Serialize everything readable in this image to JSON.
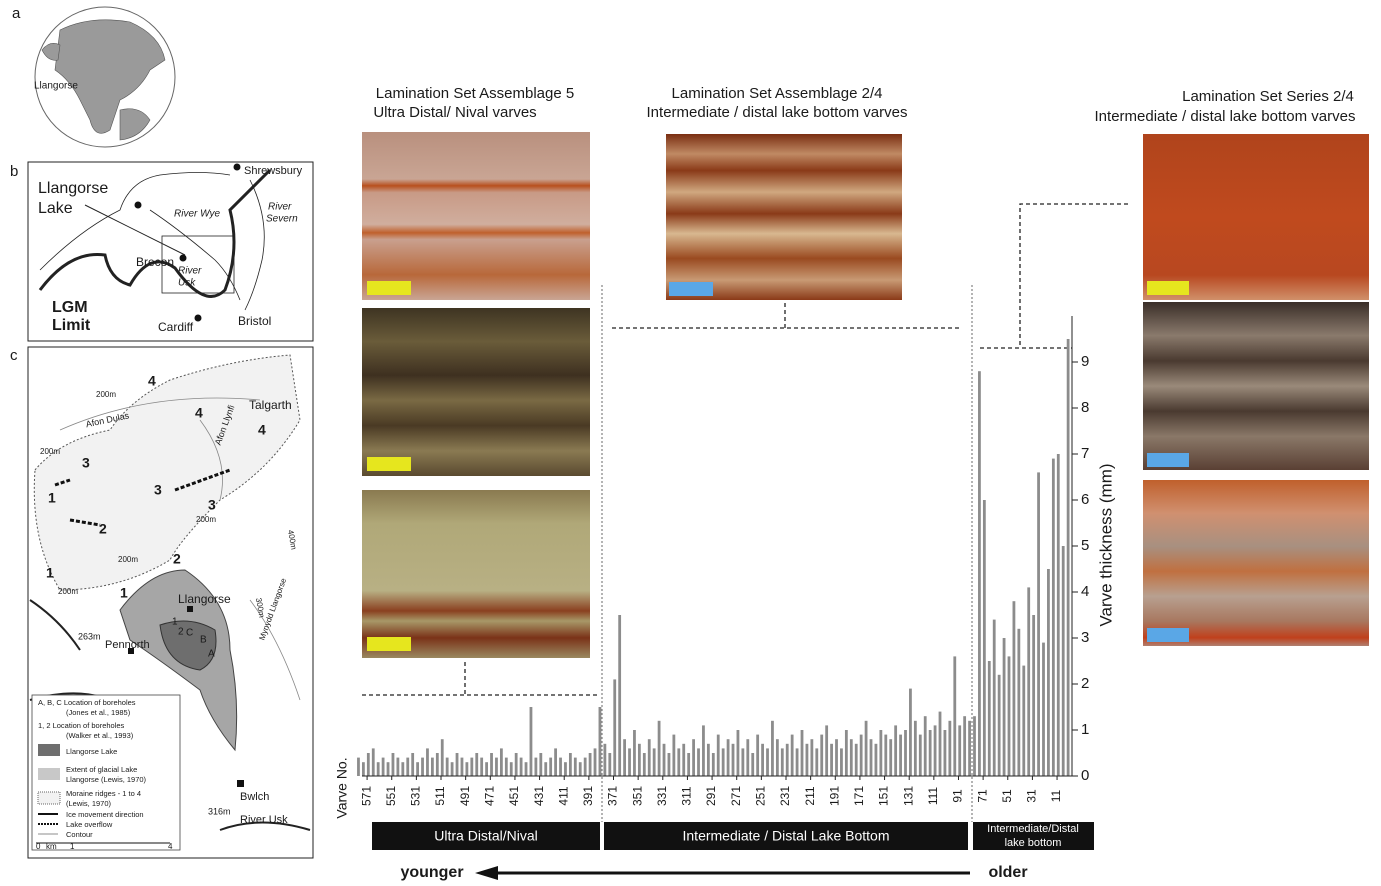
{
  "figure": {
    "panel_a": "a",
    "panel_b": "b",
    "panel_c": "c",
    "globe_label": "Llangorse",
    "map_b": {
      "lake_1": "Llangorse",
      "lake_2": "Lake",
      "shrewsbury": "Shrewsbury",
      "wye": "River Wye",
      "severn_1": "River",
      "severn_2": "Severn",
      "brecon": "Brecon",
      "usk_1": "River",
      "usk_2": "Usk",
      "lgm_1": "LGM",
      "lgm_2": "Limit",
      "cardiff": "Cardiff",
      "bristol": "Bristol"
    },
    "map_c": {
      "talgarth": "Talgarth",
      "dulas": "Afon Dulas",
      "llynfi": "Afon Llynfi",
      "llangorse": "Llangorse",
      "pennorth": "Pennorth",
      "bwlch": "Bwlch",
      "usk": "River Usk",
      "h263": "263m",
      "h316": "316m",
      "m1": "1",
      "m2": "2",
      "m3": "3",
      "m4": "4",
      "c200": "200m",
      "c300": "300m",
      "c400": "400m",
      "mynydd": "Mynydd Llangorse",
      "bA": "A",
      "bB": "B",
      "bC": "C",
      "b1": "1",
      "b2": "2",
      "legend": [
        "A, B, C  Location of boreholes",
        "(Jones et al., 1985)",
        "1, 2  Location of boreholes",
        "(Walker et al., 1993)",
        "Llangorse Lake",
        "Extent of glacial Lake",
        "Llangorse (Lewis, 1970)",
        "Moraine ridges - 1 to 4",
        "(Lewis, 1970)",
        "Ice movement direction",
        "Lake overflow",
        "Contour"
      ],
      "scale_0": "0",
      "scale_km": "km",
      "scale_1": "1",
      "scale_4": "4"
    },
    "heading_1": [
      "Lamination Set Assemblage 5",
      "Ultra Distal/ Nival varves"
    ],
    "heading_2": [
      "Lamination Set Assemblage 2/4",
      "Intermediate / distal lake bottom varves"
    ],
    "heading_3": [
      "Lamination Set Series 2/4",
      "Intermediate / distal lake bottom varves"
    ],
    "zones": [
      "Ultra Distal/Nival",
      "Intermediate / Distal Lake Bottom",
      "Intermediate/Distal",
      "lake bottom"
    ],
    "younger": "younger",
    "older": "older"
  },
  "chart_data": {
    "type": "bar",
    "xlabel": "Varve No.",
    "ylabel": "Varve thickness (mm)",
    "color": "#8c8c8c",
    "xlim": [
      580,
      0
    ],
    "ylim": [
      0,
      10
    ],
    "xticks": [
      571,
      551,
      531,
      511,
      491,
      471,
      451,
      431,
      411,
      391,
      371,
      351,
      331,
      311,
      291,
      271,
      251,
      231,
      211,
      191,
      171,
      151,
      131,
      111,
      91,
      71,
      51,
      31,
      11
    ],
    "yticks": [
      0,
      1,
      2,
      3,
      4,
      5,
      6,
      7,
      8,
      9
    ],
    "x": [
      578,
      574,
      570,
      566,
      562,
      558,
      554,
      550,
      546,
      542,
      538,
      534,
      530,
      526,
      522,
      518,
      514,
      510,
      506,
      502,
      498,
      494,
      490,
      486,
      482,
      478,
      474,
      470,
      466,
      462,
      458,
      454,
      450,
      446,
      442,
      438,
      434,
      430,
      426,
      422,
      418,
      414,
      410,
      406,
      402,
      398,
      394,
      390,
      386,
      382,
      378,
      374,
      370,
      366,
      362,
      358,
      354,
      350,
      346,
      342,
      338,
      334,
      330,
      326,
      322,
      318,
      314,
      310,
      306,
      302,
      298,
      294,
      290,
      286,
      282,
      278,
      274,
      270,
      266,
      262,
      258,
      254,
      250,
      246,
      242,
      238,
      234,
      230,
      226,
      222,
      218,
      214,
      210,
      206,
      202,
      198,
      194,
      190,
      186,
      182,
      178,
      174,
      170,
      166,
      162,
      158,
      154,
      150,
      146,
      142,
      138,
      134,
      130,
      126,
      122,
      118,
      114,
      110,
      106,
      102,
      98,
      94,
      90,
      86,
      82,
      78,
      74,
      70,
      66,
      62,
      58,
      54,
      50,
      46,
      42,
      38,
      34,
      30,
      26,
      22,
      18,
      14,
      10,
      6,
      2
    ],
    "values": [
      0.4,
      0.3,
      0.5,
      0.6,
      0.3,
      0.4,
      0.3,
      0.5,
      0.4,
      0.3,
      0.4,
      0.5,
      0.3,
      0.4,
      0.6,
      0.4,
      0.5,
      0.8,
      0.4,
      0.3,
      0.5,
      0.4,
      0.3,
      0.4,
      0.5,
      0.4,
      0.3,
      0.5,
      0.4,
      0.6,
      0.4,
      0.3,
      0.5,
      0.4,
      0.3,
      1.5,
      0.4,
      0.5,
      0.3,
      0.4,
      0.6,
      0.4,
      0.3,
      0.5,
      0.4,
      0.3,
      0.4,
      0.5,
      0.6,
      1.5,
      0.7,
      0.5,
      2.1,
      3.5,
      0.8,
      0.6,
      1.0,
      0.7,
      0.5,
      0.8,
      0.6,
      1.2,
      0.7,
      0.5,
      0.9,
      0.6,
      0.7,
      0.5,
      0.8,
      0.6,
      1.1,
      0.7,
      0.5,
      0.9,
      0.6,
      0.8,
      0.7,
      1.0,
      0.6,
      0.8,
      0.5,
      0.9,
      0.7,
      0.6,
      1.2,
      0.8,
      0.6,
      0.7,
      0.9,
      0.6,
      1.0,
      0.7,
      0.8,
      0.6,
      0.9,
      1.1,
      0.7,
      0.8,
      0.6,
      1.0,
      0.8,
      0.7,
      0.9,
      1.2,
      0.8,
      0.7,
      1.0,
      0.9,
      0.8,
      1.1,
      0.9,
      1.0,
      1.9,
      1.2,
      0.9,
      1.3,
      1.0,
      1.1,
      1.4,
      1.0,
      1.2,
      2.6,
      1.1,
      1.3,
      1.2,
      1.3,
      8.8,
      6.0,
      2.5,
      3.4,
      2.2,
      3.0,
      2.6,
      3.8,
      3.2,
      2.4,
      4.1,
      3.5,
      6.6,
      2.9,
      4.5,
      6.9,
      7.0,
      5.0,
      9.5
    ]
  }
}
